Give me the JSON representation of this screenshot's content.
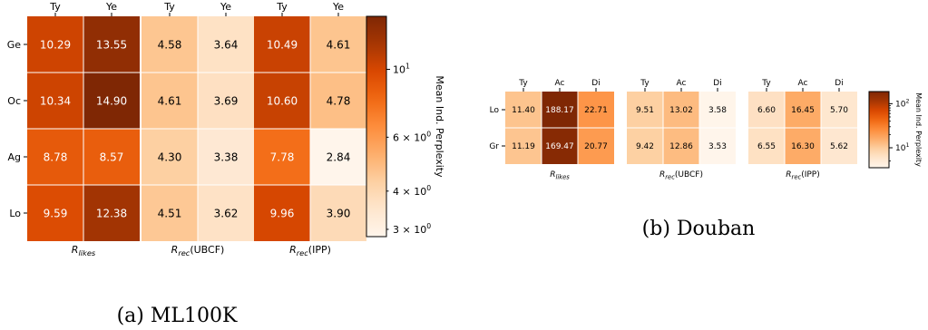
{
  "chart_data": [
    {
      "type": "heatmap",
      "caption": "(a) ML100K",
      "rows": [
        "Ge",
        "Oc",
        "Ag",
        "Lo"
      ],
      "panels": [
        {
          "label_main": "R",
          "label_sub": "likes",
          "label_suffix": "",
          "columns": [
            "Ty",
            "Ye"
          ],
          "values": [
            [
              10.29,
              13.55
            ],
            [
              10.34,
              14.9
            ],
            [
              8.78,
              8.57
            ],
            [
              9.59,
              12.38
            ]
          ],
          "text": [
            [
              "10.29",
              "13.55"
            ],
            [
              "10.34",
              "14.90"
            ],
            [
              "8.78",
              "8.57"
            ],
            [
              "9.59",
              "12.38"
            ]
          ]
        },
        {
          "label_main": "R",
          "label_sub": "rec",
          "label_suffix": "(UBCF)",
          "columns": [
            "Ty",
            "Ye"
          ],
          "values": [
            [
              4.58,
              3.64
            ],
            [
              4.61,
              3.69
            ],
            [
              4.3,
              3.38
            ],
            [
              4.51,
              3.62
            ]
          ],
          "text": [
            [
              "4.58",
              "3.64"
            ],
            [
              "4.61",
              "3.69"
            ],
            [
              "4.30",
              "3.38"
            ],
            [
              "4.51",
              "3.62"
            ]
          ]
        },
        {
          "label_main": "R",
          "label_sub": "rec",
          "label_suffix": "(IPP)",
          "columns": [
            "Ty",
            "Ye"
          ],
          "values": [
            [
              10.49,
              4.61
            ],
            [
              10.6,
              4.78
            ],
            [
              7.78,
              2.84
            ],
            [
              9.96,
              3.9
            ]
          ],
          "text": [
            [
              "10.49",
              "4.61"
            ],
            [
              "10.60",
              "4.78"
            ],
            [
              "7.78",
              "2.84"
            ],
            [
              "9.96",
              "3.90"
            ]
          ]
        }
      ],
      "colorbar": {
        "label": "Mean Ind. Perplexity",
        "scale": "log",
        "range": [
          2.84,
          14.9
        ],
        "major_ticks": [
          {
            "value": 10,
            "base": "10",
            "exp": "1"
          }
        ],
        "minor_ticks": [
          {
            "value": 6,
            "mant": "6",
            "base": "10",
            "exp": "0"
          },
          {
            "value": 4,
            "mant": "4",
            "base": "10",
            "exp": "0"
          },
          {
            "value": 3,
            "mant": "3",
            "base": "10",
            "exp": "0"
          }
        ]
      }
    },
    {
      "type": "heatmap",
      "caption": "(b) Douban",
      "rows": [
        "Lo",
        "Gr"
      ],
      "panels": [
        {
          "label_main": "R",
          "label_sub": "likes",
          "label_suffix": "",
          "columns": [
            "Ty",
            "Ac",
            "Di"
          ],
          "values": [
            [
              11.4,
              188.17,
              22.71
            ],
            [
              11.19,
              169.47,
              20.77
            ]
          ],
          "text": [
            [
              "11.40",
              "188.17",
              "22.71"
            ],
            [
              "11.19",
              "169.47",
              "20.77"
            ]
          ]
        },
        {
          "label_main": "R",
          "label_sub": "rec",
          "label_suffix": "(UBCF)",
          "columns": [
            "Ty",
            "Ac",
            "Di"
          ],
          "values": [
            [
              9.51,
              13.02,
              3.58
            ],
            [
              9.42,
              12.86,
              3.53
            ]
          ],
          "text": [
            [
              "9.51",
              "13.02",
              "3.58"
            ],
            [
              "9.42",
              "12.86",
              "3.53"
            ]
          ]
        },
        {
          "label_main": "R",
          "label_sub": "rec",
          "label_suffix": "(IPP)",
          "columns": [
            "Ty",
            "Ac",
            "Di"
          ],
          "values": [
            [
              6.6,
              16.45,
              5.7
            ],
            [
              6.55,
              16.3,
              5.62
            ]
          ],
          "text": [
            [
              "6.60",
              "16.45",
              "5.70"
            ],
            [
              "6.55",
              "16.30",
              "5.62"
            ]
          ]
        }
      ],
      "colorbar": {
        "label": "Mean Ind. Perplexity",
        "scale": "log",
        "range": [
          3.53,
          188.17
        ],
        "major_ticks": [
          {
            "value": 100,
            "base": "10",
            "exp": "2"
          },
          {
            "value": 10,
            "base": "10",
            "exp": "1"
          }
        ],
        "minor_ticks": []
      }
    }
  ]
}
